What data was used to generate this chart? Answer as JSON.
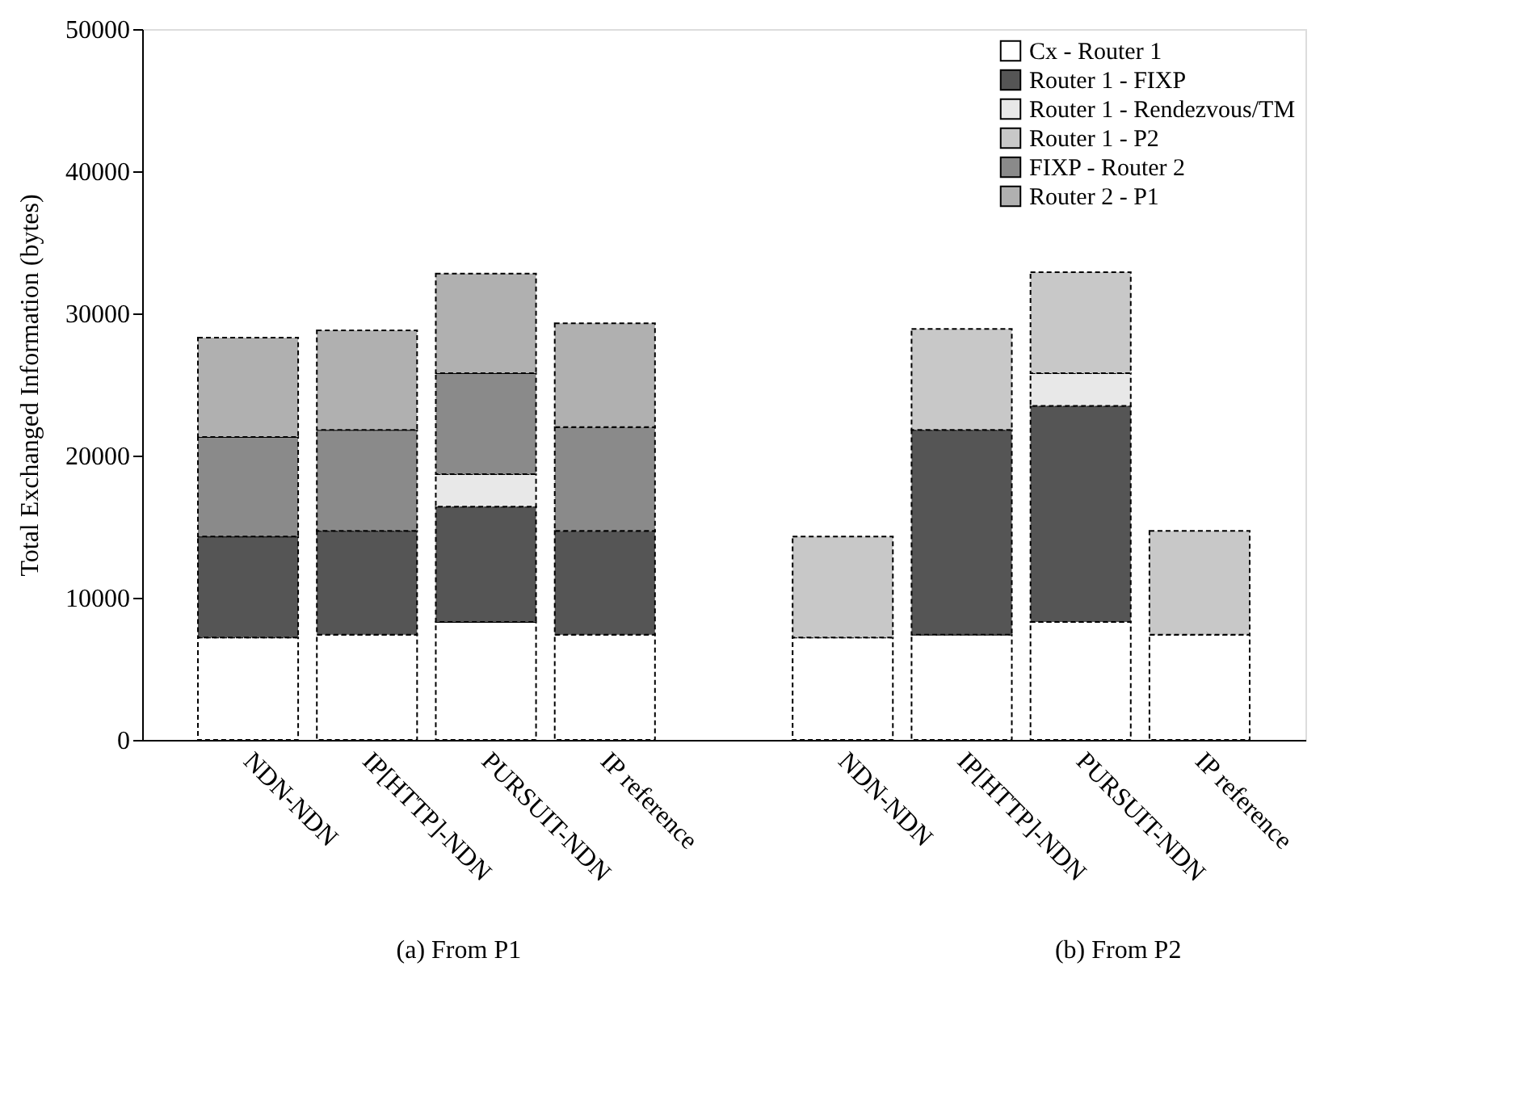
{
  "chart_data": {
    "type": "bar",
    "stacked": true,
    "ylabel": "Total Exchanged Information (bytes)",
    "categories": [
      "NDN-NDN",
      "IP[HTTP]-NDN",
      "PURSUIT-NDN",
      "IP reference",
      null,
      "NDN-NDN",
      "IP[HTTP]-NDN",
      "PURSUIT-NDN",
      "IP reference"
    ],
    "series": [
      {
        "name": "Cx - Router 1",
        "color": "#ffffff",
        "values": [
          7200,
          7400,
          8300,
          7400,
          null,
          7200,
          7400,
          8300,
          7400
        ]
      },
      {
        "name": "Router 1 - FIXP",
        "color": "#555555",
        "values": [
          7100,
          7300,
          8100,
          7300,
          null,
          null,
          14400,
          15200,
          null
        ]
      },
      {
        "name": "Router 1 - Rendezvous/TM",
        "color": "#e8e8e8",
        "values": [
          null,
          null,
          2300,
          null,
          null,
          null,
          null,
          2300,
          null
        ]
      },
      {
        "name": "Router 1 - P2",
        "color": "#c8c8c8",
        "values": [
          null,
          null,
          null,
          null,
          null,
          7100,
          7100,
          7100,
          7300
        ]
      },
      {
        "name": "FIXP - Router 2",
        "color": "#8a8a8a",
        "values": [
          7000,
          7100,
          7100,
          7300,
          null,
          null,
          null,
          null,
          null
        ]
      },
      {
        "name": "Router 2 - P1",
        "color": "#b0b0b0",
        "values": [
          7000,
          7000,
          7000,
          7300,
          null,
          null,
          null,
          null,
          null
        ]
      }
    ],
    "ylim": [
      0,
      50000
    ],
    "yticks": [
      0,
      10000,
      20000,
      30000,
      40000,
      50000
    ],
    "grid": false,
    "legend": "top right",
    "annotations": [
      "(a) From P1",
      "(b) From P2"
    ]
  }
}
